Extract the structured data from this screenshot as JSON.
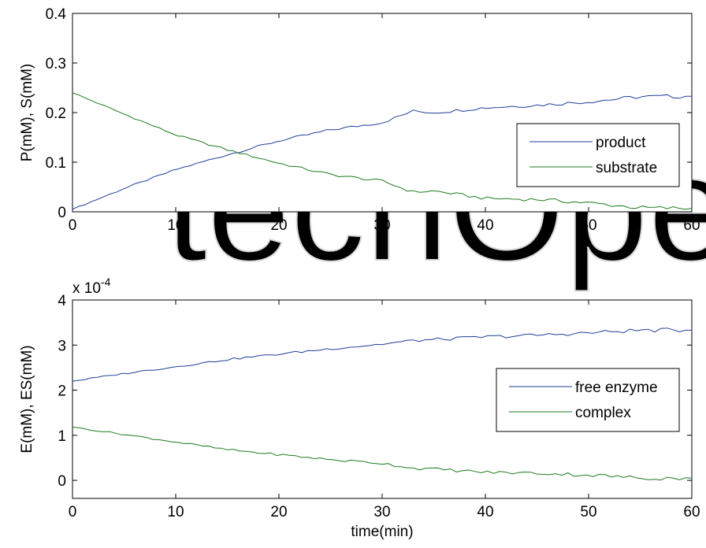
{
  "chart_data": [
    {
      "type": "line",
      "xlabel": "",
      "ylabel": "P(mM), S(mM)",
      "xlim": [
        0,
        60
      ],
      "ylim": [
        0,
        0.4
      ],
      "xticks": [
        "0",
        "10",
        "20",
        "30",
        "40",
        "50",
        "60"
      ],
      "yticks": [
        "0",
        "0.1",
        "0.2",
        "0.3",
        "0.4"
      ],
      "exponent_label": "",
      "legend_position": "right",
      "grid": false,
      "x": [
        0,
        5,
        10,
        15,
        20,
        25,
        30,
        33,
        35,
        40,
        45,
        50,
        55,
        60
      ],
      "series": [
        {
          "name": "product",
          "color": "#1f3f99",
          "values": [
            0.005,
            0.047,
            0.085,
            0.115,
            0.143,
            0.165,
            0.18,
            0.203,
            0.2,
            0.21,
            0.215,
            0.222,
            0.232,
            0.233
          ]
        },
        {
          "name": "substrate",
          "color": "#1e7a1e",
          "values": [
            0.24,
            0.197,
            0.155,
            0.125,
            0.098,
            0.075,
            0.062,
            0.04,
            0.042,
            0.027,
            0.025,
            0.018,
            0.008,
            0.007
          ]
        }
      ]
    },
    {
      "type": "line",
      "xlabel": "time(min)",
      "ylabel": "E(mM), ES(mM)",
      "xlim": [
        0,
        60
      ],
      "ylim": [
        -0.4,
        4
      ],
      "xticks": [
        "0",
        "10",
        "20",
        "30",
        "40",
        "50",
        "60"
      ],
      "yticks": [
        "0",
        "1",
        "2",
        "3",
        "4"
      ],
      "exponent_label": "x 10",
      "exponent_power": "-4",
      "legend_position": "right",
      "grid": false,
      "x": [
        0,
        5,
        10,
        15,
        20,
        25,
        30,
        33,
        35,
        40,
        45,
        50,
        55,
        60
      ],
      "series": [
        {
          "name": "free enzyme",
          "color": "#1f3f99",
          "values": [
            2.2,
            2.37,
            2.52,
            2.68,
            2.8,
            2.92,
            3.02,
            3.1,
            3.12,
            3.18,
            3.22,
            3.27,
            3.33,
            3.33
          ]
        },
        {
          "name": "complex",
          "color": "#1e7a1e",
          "values": [
            1.18,
            1.02,
            0.85,
            0.68,
            0.57,
            0.46,
            0.38,
            0.27,
            0.25,
            0.18,
            0.16,
            0.12,
            0.05,
            0.05
          ]
        }
      ]
    }
  ]
}
